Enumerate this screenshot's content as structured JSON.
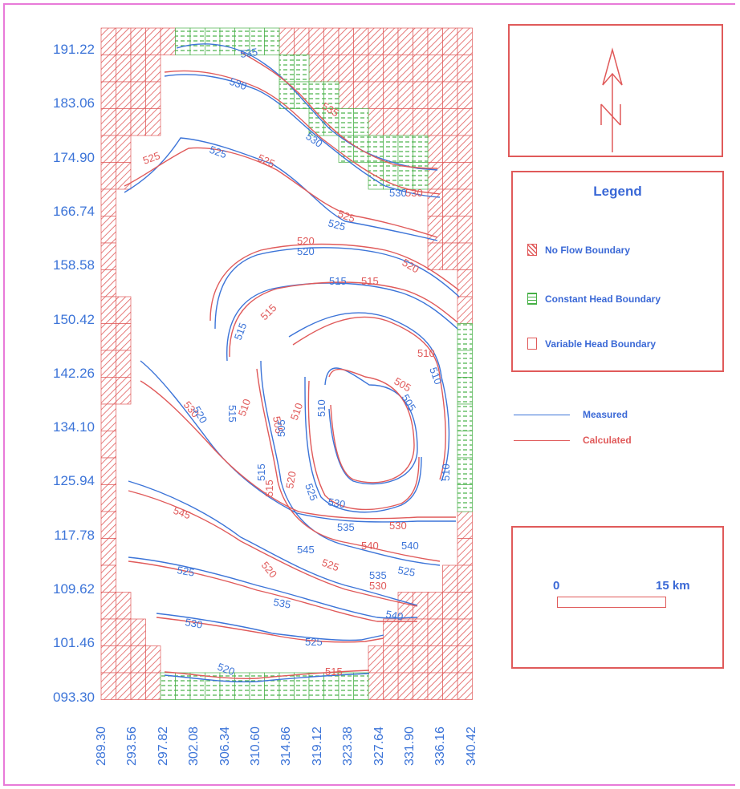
{
  "colors": {
    "measured": "#3c74d8",
    "calculated": "#e05a5a",
    "no_flow": "#e05a5a",
    "constant_head": "#46b046",
    "label_blue": "#3a68d6",
    "frame": "#e87ad8"
  },
  "y_axis": {
    "ticks": [
      "191.22",
      "183.06",
      "174.90",
      "166.74",
      "158.58",
      "150.42",
      "142.26",
      "134.10",
      "125.94",
      "117.78",
      "109.62",
      "101.46",
      "093.30"
    ]
  },
  "x_axis": {
    "ticks": [
      "289.30",
      "293.56",
      "297.82",
      "302.08",
      "306.34",
      "310.60",
      "314.86",
      "319.12",
      "323.38",
      "327.64",
      "331.90",
      "336.16",
      "340.42"
    ]
  },
  "north_arrow": {
    "icon": "north-arrow-icon",
    "letter": "N"
  },
  "legend": {
    "title": "Legend",
    "items": [
      {
        "label": "No Flow Boundary",
        "icon": "hatched-red-swatch"
      },
      {
        "label": "Constant Head Boundary",
        "icon": "green-dashed-swatch"
      },
      {
        "label": "Variable Head Boundary",
        "icon": "empty-red-swatch"
      }
    ]
  },
  "line_legend": {
    "measured_label": "Measured",
    "calculated_label": "Calculated"
  },
  "scale_bar": {
    "start_label": "0",
    "end_label": "15 km"
  },
  "contour_labels": [
    "535",
    "530",
    "535",
    "530",
    "525",
    "525",
    "525",
    "530",
    "530",
    "525",
    "525",
    "520",
    "520",
    "520",
    "515",
    "515",
    "515",
    "515",
    "510",
    "510",
    "505",
    "505",
    "530",
    "520",
    "515",
    "510",
    "505",
    "505",
    "510",
    "510",
    "515",
    "515",
    "520",
    "525",
    "530",
    "535",
    "530",
    "540",
    "540",
    "545",
    "545",
    "525",
    "520",
    "530",
    "535",
    "540",
    "525",
    "525",
    "535",
    "530",
    "525",
    "520",
    "515",
    "510"
  ]
}
